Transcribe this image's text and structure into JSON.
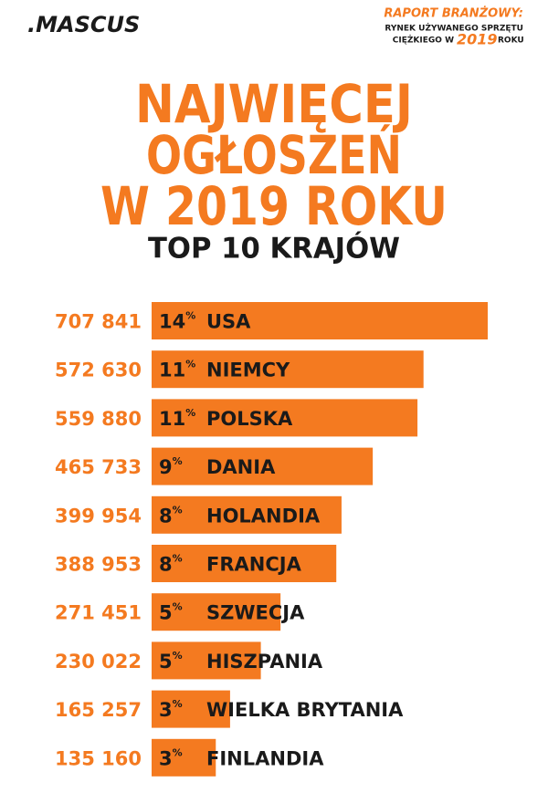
{
  "header": {
    "logo": ".MASCUS",
    "report_title": "RAPORT BRANŻOWY:",
    "report_line1": "RYNEK UŻYWANEGO SPRZĘTU",
    "report_line2": "CIĘŻKIEGO W",
    "report_year": "2019",
    "report_line3": "ROKU"
  },
  "chart_data": {
    "type": "bar",
    "orientation": "horizontal",
    "title": [
      "NAJWIĘCEJ",
      "OGŁOSZEŃ",
      "W 2019 ROKU"
    ],
    "subtitle": "TOP 10 KRAJÓW",
    "categories": [
      "USA",
      "NIEMCY",
      "POLSKA",
      "DANIA",
      "HOLANDIA",
      "FRANCJA",
      "SZWECJA",
      "HISZPANIA",
      "WIELKA BRYTANIA",
      "FINLANDIA"
    ],
    "values": [
      707841,
      572630,
      559880,
      465733,
      399954,
      388953,
      271451,
      230022,
      165257,
      135160
    ],
    "value_labels": [
      "707 841",
      "572 630",
      "559 880",
      "465 733",
      "399 954",
      "388 953",
      "271 451",
      "230 022",
      "165 257",
      "135 160"
    ],
    "share_labels": [
      "14%",
      "11%",
      "11%",
      "9%",
      "8%",
      "8%",
      "5%",
      "5%",
      "3%",
      "3%"
    ],
    "color": "#f47a20"
  }
}
